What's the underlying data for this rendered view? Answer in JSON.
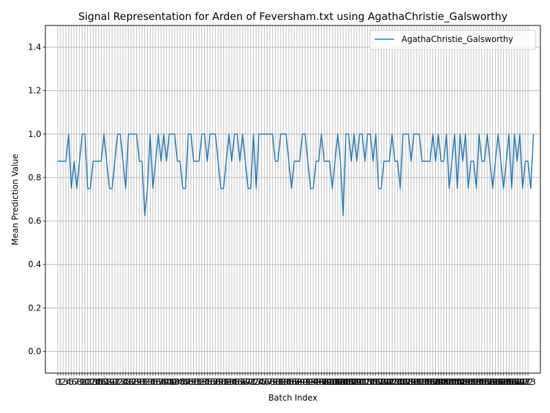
{
  "chart_data": {
    "type": "line",
    "title": "Signal Representation for Arden of Feversham.txt using AgathaChristie_Galsworthy",
    "xlabel": "Batch Index",
    "ylabel": "Mean Prediction Value",
    "ylim": [
      -0.1,
      1.5
    ],
    "xlim": [
      -4.55,
      177.55
    ],
    "yticks": [
      0.0,
      0.2,
      0.4,
      0.6,
      0.8,
      1.0,
      1.2,
      1.4
    ],
    "ytick_labels": [
      "0.0",
      "0.2",
      "0.4",
      "0.6",
      "0.8",
      "1.0",
      "1.2",
      "1.4"
    ],
    "xtick_labels": [
      "0",
      "1",
      "2",
      "3",
      "4",
      "5",
      "6",
      "7",
      "8",
      "9",
      "10",
      "11",
      "12",
      "13",
      "14",
      "15",
      "16",
      "17",
      "18",
      "19",
      "20",
      "21",
      "22",
      "23",
      "24",
      "25",
      "26",
      "27",
      "28",
      "29",
      "30",
      "31",
      "32",
      "33",
      "34",
      "35",
      "36",
      "37",
      "38",
      "39",
      "40",
      "41",
      "42",
      "43",
      "44",
      "45",
      "46",
      "47",
      "48",
      "49",
      "50",
      "51",
      "52",
      "53",
      "54",
      "55",
      "56",
      "57",
      "58",
      "59",
      "60",
      "61",
      "62",
      "63",
      "64",
      "65",
      "66",
      "67",
      "68",
      "69",
      "70",
      "71",
      "72",
      "73",
      "74",
      "75",
      "76",
      "77",
      "78",
      "79",
      "80",
      "81",
      "82",
      "83",
      "84",
      "85",
      "86",
      "87",
      "88",
      "89",
      "90",
      "91",
      "92",
      "93",
      "94",
      "95",
      "96",
      "97",
      "98",
      "99",
      "100",
      "101",
      "102",
      "103",
      "104",
      "105",
      "106",
      "107",
      "108",
      "109",
      "110",
      "111",
      "112",
      "113",
      "114",
      "115",
      "116",
      "117",
      "118",
      "119",
      "120",
      "121",
      "122",
      "123",
      "124",
      "125",
      "126",
      "127",
      "128",
      "129",
      "130",
      "131",
      "132",
      "133",
      "134",
      "135",
      "136",
      "137",
      "138",
      "139",
      "140",
      "141",
      "142",
      "143",
      "144",
      "145",
      "146",
      "147",
      "148",
      "149",
      "150",
      "151",
      "152",
      "153",
      "154",
      "155",
      "156",
      "157",
      "158",
      "159",
      "160",
      "161",
      "162",
      "163",
      "164",
      "165",
      "166",
      "167",
      "168",
      "169",
      "170",
      "171",
      "172",
      "173"
    ],
    "grid": true,
    "legend": "upper right",
    "series": [
      {
        "name": "AgathaChristie_Galsworthy",
        "color": "#1f77b4",
        "values": [
          0.875,
          0.875,
          0.875,
          0.875,
          1.0,
          0.75,
          0.875,
          0.75,
          0.875,
          1.0,
          1.0,
          0.75,
          0.75,
          0.875,
          0.875,
          0.875,
          0.875,
          1.0,
          0.875,
          0.75,
          0.75,
          0.875,
          1.0,
          1.0,
          0.875,
          0.75,
          1.0,
          1.0,
          1.0,
          1.0,
          0.875,
          0.875,
          0.625,
          0.75,
          1.0,
          0.75,
          0.875,
          1.0,
          0.875,
          1.0,
          0.875,
          1.0,
          1.0,
          1.0,
          0.875,
          0.875,
          0.75,
          0.75,
          1.0,
          1.0,
          0.875,
          0.875,
          0.875,
          1.0,
          1.0,
          0.875,
          1.0,
          1.0,
          1.0,
          0.875,
          0.75,
          0.75,
          0.875,
          1.0,
          0.875,
          1.0,
          1.0,
          0.875,
          1.0,
          0.875,
          0.75,
          0.75,
          1.0,
          0.75,
          1.0,
          1.0,
          1.0,
          1.0,
          1.0,
          1.0,
          0.875,
          0.875,
          1.0,
          1.0,
          1.0,
          0.875,
          0.75,
          0.875,
          0.875,
          0.875,
          1.0,
          1.0,
          0.875,
          0.75,
          0.75,
          0.875,
          0.875,
          1.0,
          0.875,
          0.875,
          0.875,
          0.75,
          0.875,
          1.0,
          0.875,
          0.625,
          1.0,
          1.0,
          0.875,
          1.0,
          0.875,
          1.0,
          1.0,
          0.875,
          1.0,
          1.0,
          0.875,
          1.0,
          0.75,
          0.75,
          0.875,
          0.875,
          0.875,
          1.0,
          0.875,
          0.875,
          0.75,
          1.0,
          1.0,
          1.0,
          0.875,
          1.0,
          1.0,
          1.0,
          0.875,
          0.875,
          0.875,
          0.875,
          1.0,
          0.875,
          1.0,
          0.875,
          0.875,
          1.0,
          0.75,
          0.875,
          1.0,
          0.75,
          1.0,
          0.875,
          1.0,
          0.75,
          0.875,
          0.875,
          0.75,
          1.0,
          0.875,
          0.875,
          1.0,
          0.875,
          0.75,
          0.875,
          1.0,
          0.875,
          0.75,
          0.875,
          1.0,
          0.75,
          1.0,
          0.875,
          1.0,
          0.75,
          0.875,
          0.875,
          0.75,
          1.0
        ]
      }
    ]
  }
}
